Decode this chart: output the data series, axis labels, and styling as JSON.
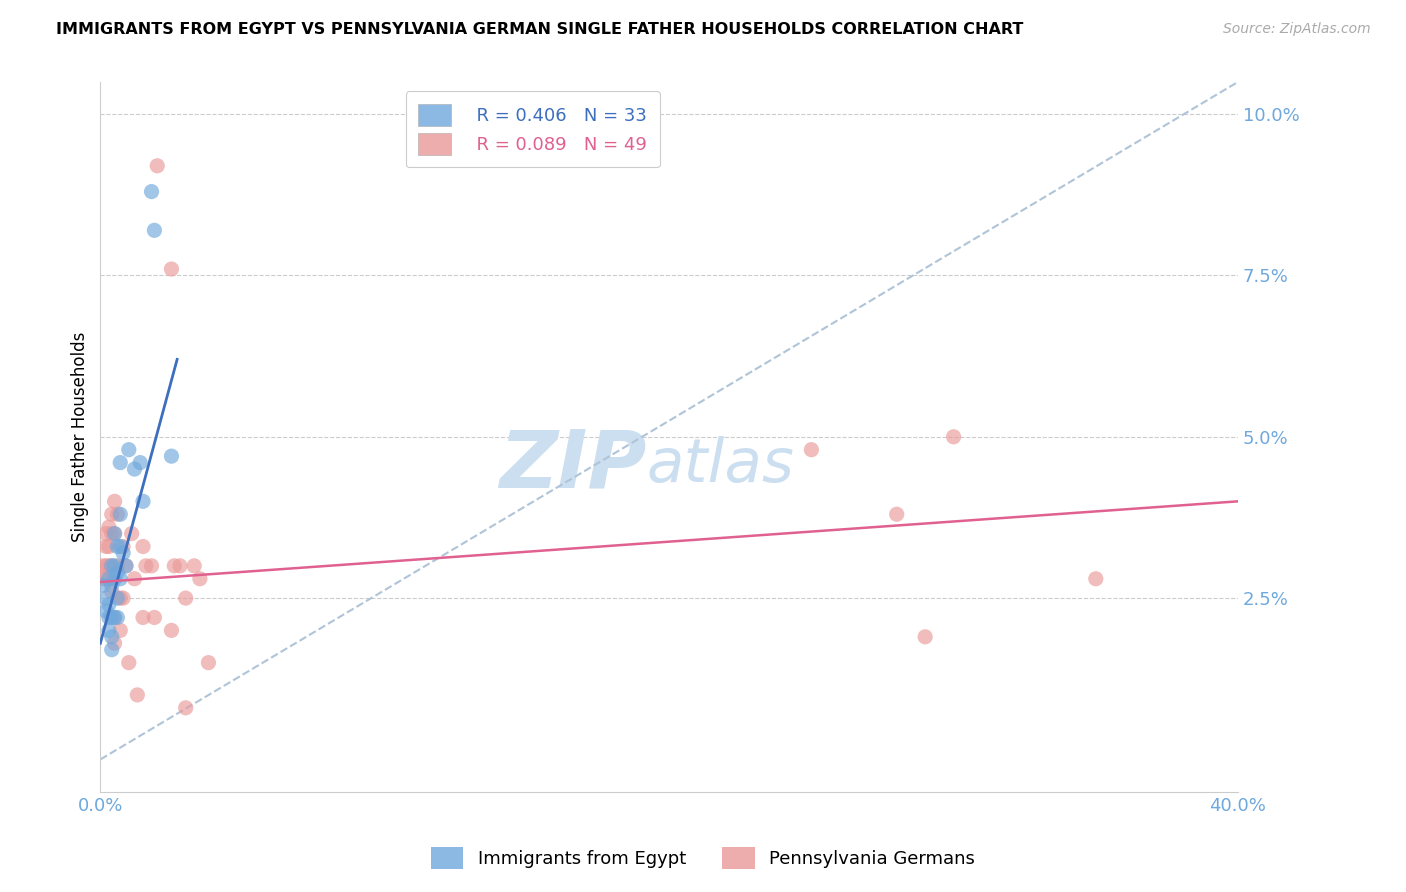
{
  "title": "IMMIGRANTS FROM EGYPT VS PENNSYLVANIA GERMAN SINGLE FATHER HOUSEHOLDS CORRELATION CHART",
  "source": "Source: ZipAtlas.com",
  "ylabel": "Single Father Households",
  "yticks": [
    0.0,
    2.5,
    5.0,
    7.5,
    10.0
  ],
  "ytick_labels": [
    "",
    "2.5%",
    "5.0%",
    "7.5%",
    "10.0%"
  ],
  "xlim": [
    0.0,
    40.0
  ],
  "ylim": [
    -0.5,
    10.5
  ],
  "legend_blue_r": "R = 0.406",
  "legend_blue_n": "N = 33",
  "legend_pink_r": "R = 0.089",
  "legend_pink_n": "N = 49",
  "legend_label_blue": "Immigrants from Egypt",
  "legend_label_pink": "Pennsylvania Germans",
  "blue_scatter": [
    [
      0.1,
      2.7
    ],
    [
      0.2,
      2.5
    ],
    [
      0.2,
      2.3
    ],
    [
      0.3,
      2.8
    ],
    [
      0.3,
      2.2
    ],
    [
      0.3,
      2.0
    ],
    [
      0.3,
      2.4
    ],
    [
      0.4,
      3.0
    ],
    [
      0.4,
      2.7
    ],
    [
      0.4,
      2.2
    ],
    [
      0.4,
      1.9
    ],
    [
      0.4,
      1.7
    ],
    [
      0.5,
      3.5
    ],
    [
      0.5,
      3.0
    ],
    [
      0.5,
      2.8
    ],
    [
      0.5,
      2.2
    ],
    [
      0.6,
      3.3
    ],
    [
      0.6,
      2.9
    ],
    [
      0.6,
      2.5
    ],
    [
      0.6,
      2.2
    ],
    [
      0.7,
      4.6
    ],
    [
      0.7,
      3.8
    ],
    [
      0.7,
      3.3
    ],
    [
      0.7,
      2.8
    ],
    [
      0.8,
      3.2
    ],
    [
      0.9,
      3.0
    ],
    [
      1.0,
      4.8
    ],
    [
      1.2,
      4.5
    ],
    [
      1.4,
      4.6
    ],
    [
      1.5,
      4.0
    ],
    [
      1.8,
      8.8
    ],
    [
      1.9,
      8.2
    ],
    [
      2.5,
      4.7
    ]
  ],
  "pink_scatter": [
    [
      0.1,
      3.0
    ],
    [
      0.1,
      2.8
    ],
    [
      0.2,
      3.5
    ],
    [
      0.2,
      3.3
    ],
    [
      0.2,
      3.0
    ],
    [
      0.2,
      2.8
    ],
    [
      0.3,
      3.6
    ],
    [
      0.3,
      3.3
    ],
    [
      0.3,
      3.0
    ],
    [
      0.3,
      2.8
    ],
    [
      0.4,
      3.8
    ],
    [
      0.4,
      3.5
    ],
    [
      0.4,
      3.0
    ],
    [
      0.4,
      2.6
    ],
    [
      0.5,
      4.0
    ],
    [
      0.5,
      3.5
    ],
    [
      0.5,
      2.2
    ],
    [
      0.5,
      1.8
    ],
    [
      0.6,
      3.8
    ],
    [
      0.6,
      3.0
    ],
    [
      0.7,
      2.5
    ],
    [
      0.7,
      2.0
    ],
    [
      0.8,
      3.3
    ],
    [
      0.8,
      2.5
    ],
    [
      0.9,
      3.0
    ],
    [
      1.0,
      1.5
    ],
    [
      1.1,
      3.5
    ],
    [
      1.2,
      2.8
    ],
    [
      1.3,
      1.0
    ],
    [
      1.5,
      3.3
    ],
    [
      1.5,
      2.2
    ],
    [
      1.6,
      3.0
    ],
    [
      1.8,
      3.0
    ],
    [
      1.9,
      2.2
    ],
    [
      2.0,
      9.2
    ],
    [
      2.5,
      7.6
    ],
    [
      2.5,
      2.0
    ],
    [
      2.6,
      3.0
    ],
    [
      2.8,
      3.0
    ],
    [
      3.0,
      2.5
    ],
    [
      3.0,
      0.8
    ],
    [
      3.3,
      3.0
    ],
    [
      3.5,
      2.8
    ],
    [
      3.8,
      1.5
    ],
    [
      25.0,
      4.8
    ],
    [
      28.0,
      3.8
    ],
    [
      29.0,
      1.9
    ],
    [
      30.0,
      5.0
    ],
    [
      35.0,
      2.8
    ]
  ],
  "blue_line_x": [
    0.0,
    2.7
  ],
  "blue_line_y": [
    1.8,
    6.2
  ],
  "pink_line_x": [
    0.0,
    40.0
  ],
  "pink_line_y": [
    2.75,
    4.0
  ],
  "dashed_line_x": [
    0.0,
    40.0
  ],
  "dashed_line_y": [
    0.0,
    10.5
  ],
  "scatter_size": 120,
  "blue_color": "#6fa8dc",
  "pink_color": "#ea9999",
  "blue_line_color": "#3d6fbe",
  "pink_line_color": "#e06090",
  "dashed_line_color": "#b0c4d8",
  "watermark_zip": "ZIP",
  "watermark_atlas": "atlas",
  "watermark_color": "#ccdff0",
  "axis_color": "#6fa8dc",
  "grid_color": "#cccccc",
  "background_color": "#ffffff"
}
